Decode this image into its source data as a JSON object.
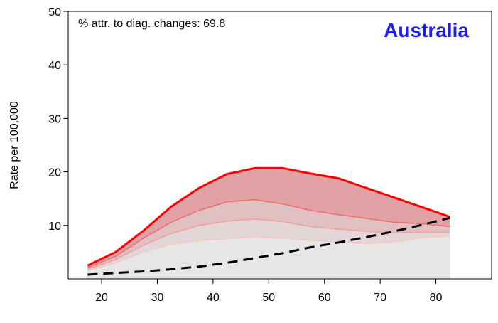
{
  "chart_data": {
    "type": "area",
    "title": "Australia",
    "annotation": "% attr. to diag. changes: 69.8",
    "xlabel": "",
    "ylabel": "Rate per 100,000",
    "xlim": [
      14,
      90
    ],
    "ylim": [
      0,
      50
    ],
    "xticks": [
      20,
      30,
      40,
      50,
      60,
      70,
      80
    ],
    "yticks": [
      10,
      20,
      30,
      40,
      50
    ],
    "grid": false,
    "x": [
      17.5,
      22.5,
      27.5,
      32.5,
      37.5,
      42.5,
      47.5,
      52.5,
      57.5,
      62.5,
      67.5,
      72.5,
      77.5,
      82.5
    ],
    "series": [
      {
        "values": [
          2.5,
          5.0,
          9.0,
          13.5,
          17.0,
          19.6,
          20.7,
          20.7,
          19.7,
          18.8,
          17.0,
          15.2,
          13.4,
          11.6
        ],
        "color": "#ff0000",
        "fill": "#e0a2a4"
      },
      {
        "values": [
          2.1,
          4.2,
          7.6,
          10.6,
          12.8,
          14.4,
          14.8,
          14.0,
          12.8,
          12.0,
          11.3,
          10.6,
          10.3,
          9.8
        ],
        "color": "#f07070",
        "fill": "#e0c0c1"
      },
      {
        "values": [
          1.8,
          3.6,
          6.3,
          8.5,
          10.0,
          10.8,
          11.2,
          10.7,
          9.8,
          9.3,
          8.9,
          8.6,
          8.7,
          8.7
        ],
        "color": "#f4a0a0",
        "fill": "#e2d6d6"
      },
      {
        "values": [
          1.5,
          3.0,
          5.0,
          6.5,
          7.2,
          7.5,
          7.8,
          7.6,
          7.2,
          6.9,
          6.6,
          6.9,
          7.7,
          8.0
        ],
        "color": "#f8c8c8",
        "fill": "#e6e6e6"
      }
    ],
    "baseline": {
      "style": "dashed",
      "color": "#000000",
      "values": [
        0.8,
        1.1,
        1.4,
        1.8,
        2.3,
        3.0,
        3.9,
        4.8,
        5.9,
        6.8,
        7.8,
        8.9,
        10.1,
        11.4
      ]
    }
  }
}
